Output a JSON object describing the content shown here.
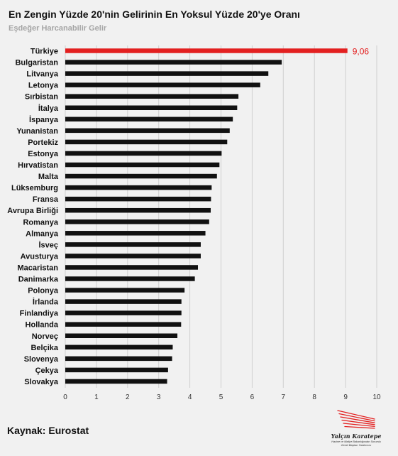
{
  "chart_data": {
    "type": "bar",
    "orientation": "horizontal",
    "title": "En Zengin Yüzde 20'nin Gelirinin En Yoksul Yüzde 20'ye Oranı",
    "subtitle": "Eşdeğer Harcanabilir Gelir",
    "categories": [
      "Türkiye",
      "Bulgaristan",
      "Litvanya",
      "Letonya",
      "Sırbistan",
      "İtalya",
      "İspanya",
      "Yunanistan",
      "Portekiz",
      "Estonya",
      "Hırvatistan",
      "Malta",
      "Lüksemburg",
      "Fransa",
      "Avrupa Birliği",
      "Romanya",
      "Almanya",
      "İsveç",
      "Avusturya",
      "Macaristan",
      "Danimarka",
      "Polonya",
      "İrlanda",
      "Finlandiya",
      "Hollanda",
      "Norveç",
      "Belçika",
      "Slovenya",
      "Çekya",
      "Slovakya"
    ],
    "values": [
      9.06,
      6.95,
      6.52,
      6.26,
      5.56,
      5.52,
      5.38,
      5.28,
      5.2,
      5.02,
      4.95,
      4.87,
      4.7,
      4.68,
      4.67,
      4.62,
      4.5,
      4.35,
      4.35,
      4.26,
      4.16,
      3.83,
      3.73,
      3.73,
      3.72,
      3.6,
      3.45,
      3.43,
      3.3,
      3.27
    ],
    "highlight_index": 0,
    "highlight_label": "9,06",
    "xlim": [
      0,
      10
    ],
    "x_ticks": [
      "0",
      "1",
      "2",
      "3",
      "4",
      "5",
      "6",
      "7",
      "8",
      "9",
      "10"
    ],
    "grid": true,
    "colors": {
      "default_bar": "#111111",
      "highlight_bar": "#e32020",
      "grid": "#cfcfcf"
    }
  },
  "source": "Kaynak: Eurostat",
  "logo": {
    "name": "Yalçın Karatepe",
    "line1": "Hazine ve Maliye Bakanlığından Sorumlu",
    "line2": "Genel Başkan Yardımcısı",
    "color": "#e32020"
  }
}
